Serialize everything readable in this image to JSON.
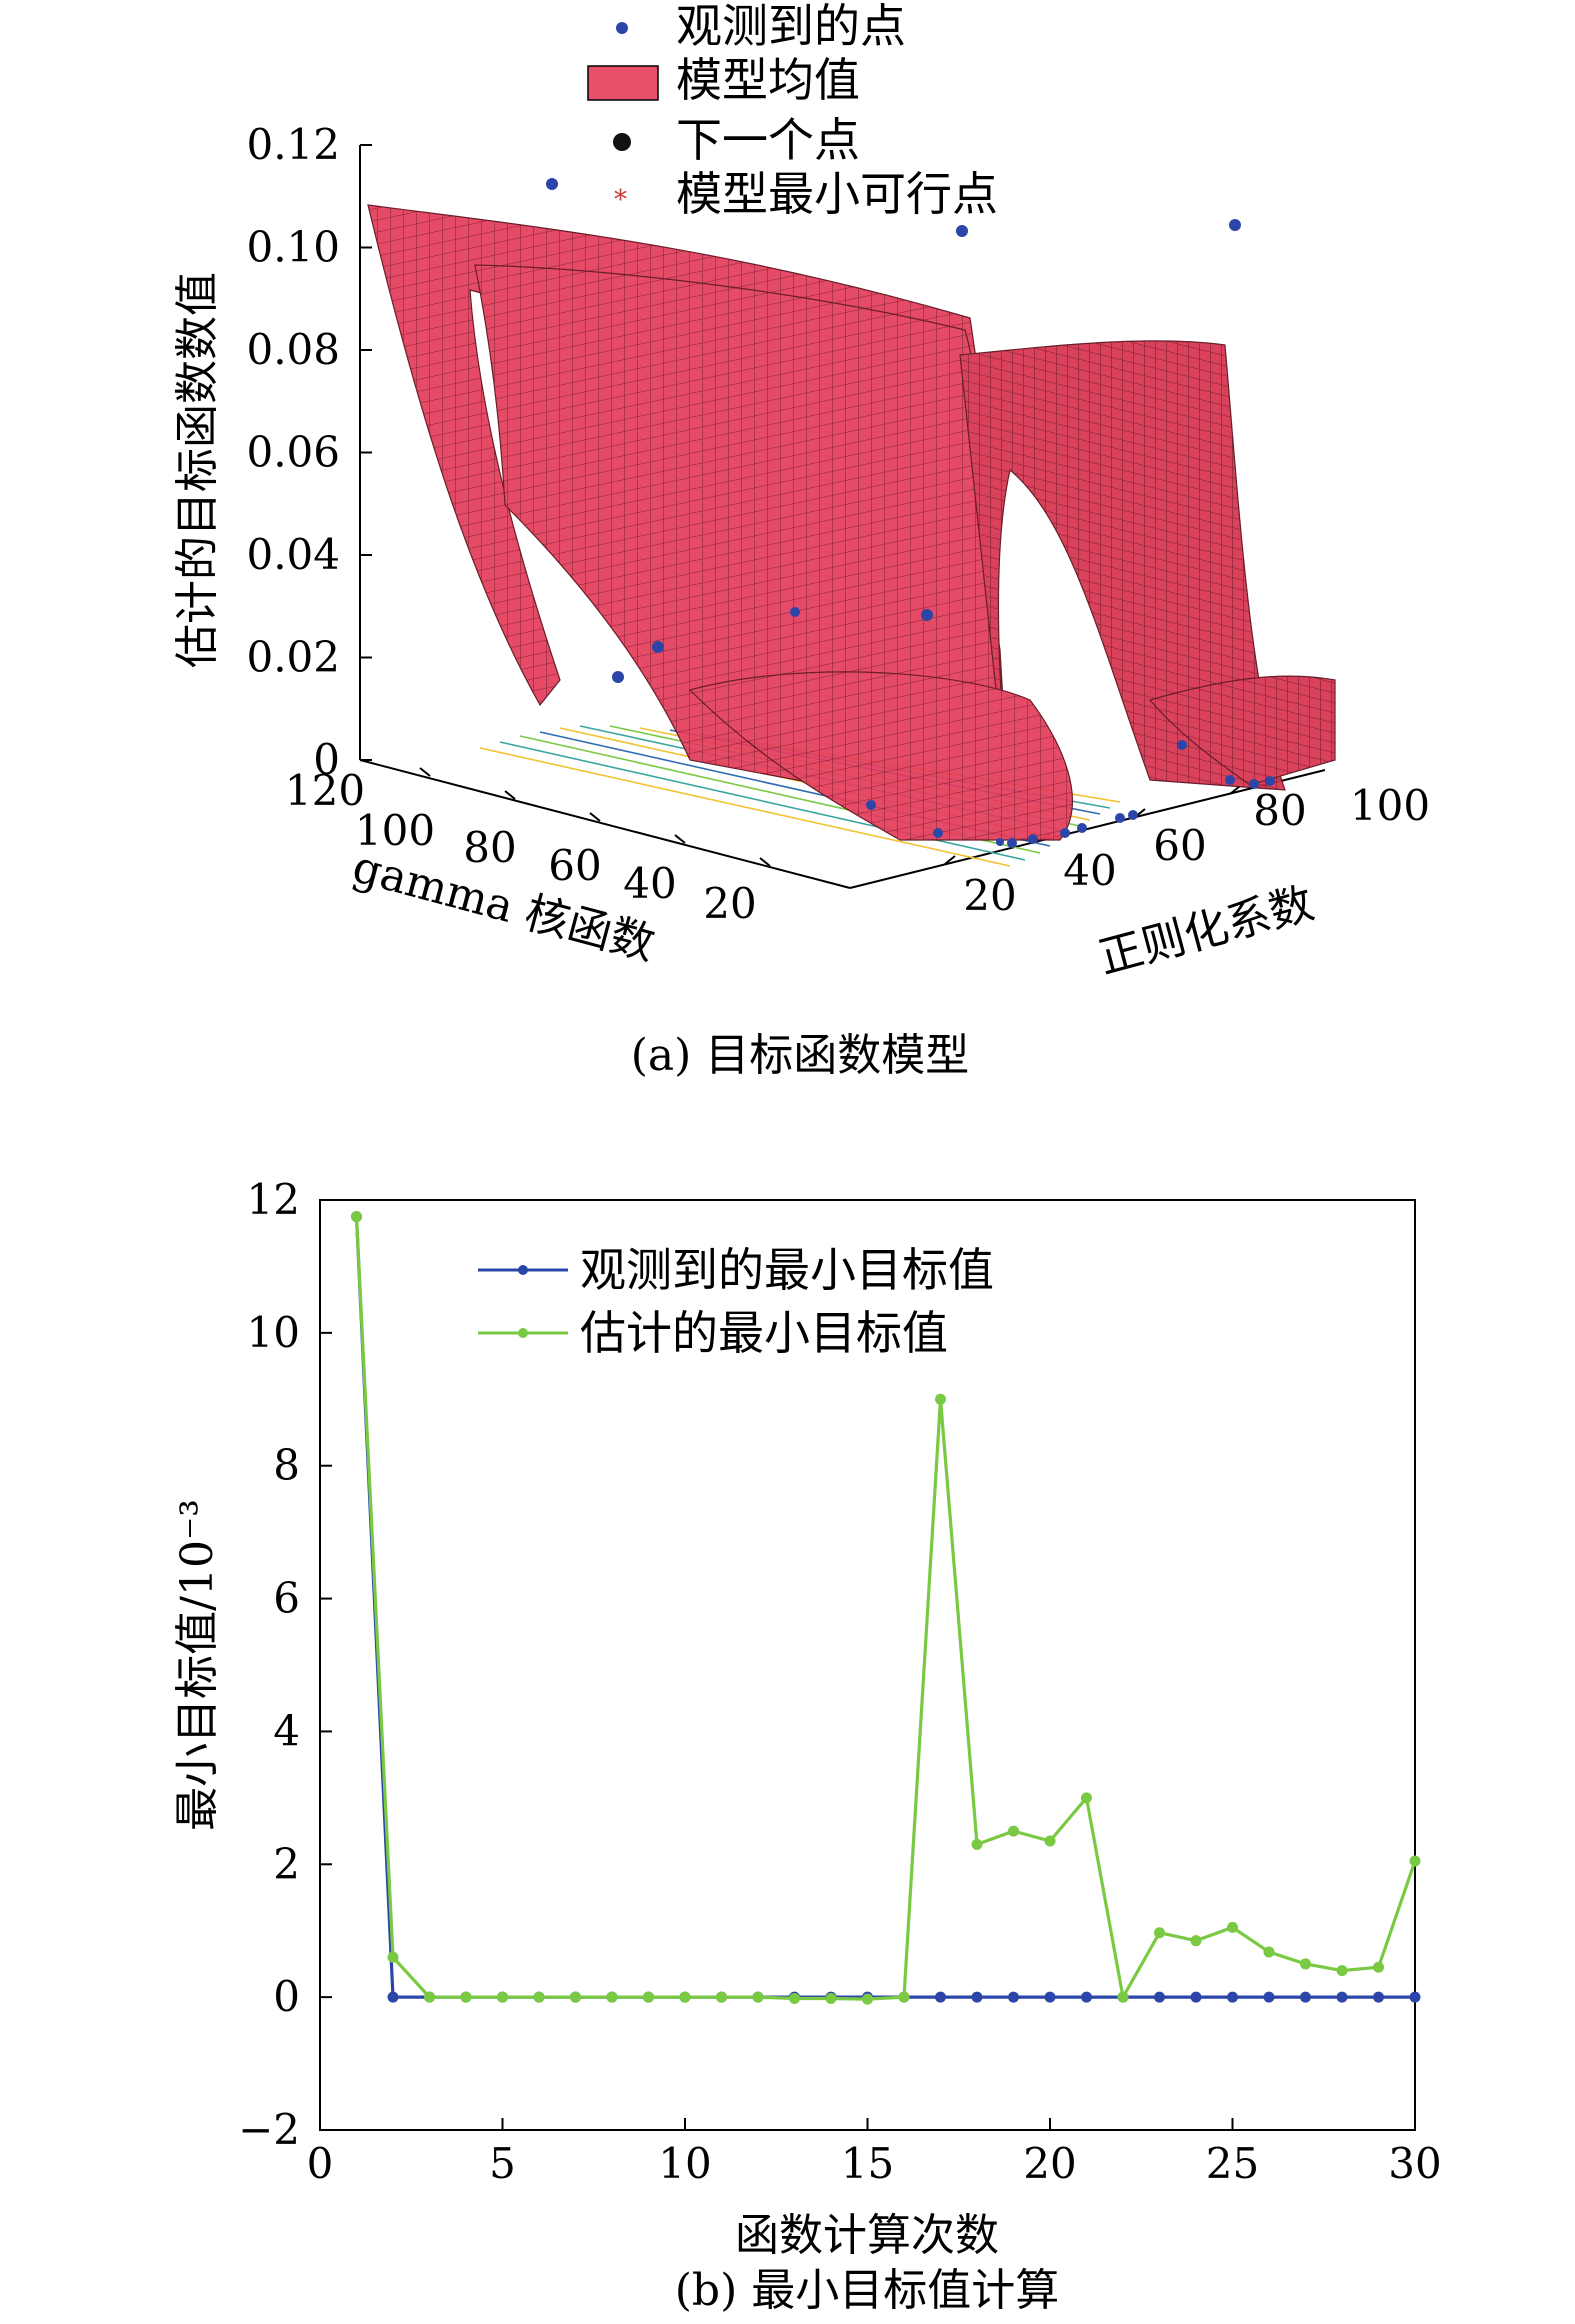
{
  "chart_data": [
    {
      "type": "surface",
      "caption": "(a) 目标函数模型",
      "zlabel": "估计的目标函数数值",
      "xlabel": "gamma 核函数",
      "ylabel": "正则化系数",
      "zlim": [
        0,
        0.12
      ],
      "zticks": [
        "0",
        "0.02",
        "0.04",
        "0.06",
        "0.08",
        "0.10",
        "0.12"
      ],
      "xticks": [
        "120",
        "100",
        "80",
        "60",
        "40",
        "20"
      ],
      "yticks": [
        "20",
        "40",
        "60",
        "80",
        "100"
      ],
      "legend": [
        {
          "label": "观测到的点",
          "marker": "dot",
          "color": "#2b46a8"
        },
        {
          "label": "模型均值",
          "marker": "rect",
          "color": "#e8506a"
        },
        {
          "label": "下一个点",
          "marker": "dot",
          "color": "#111111"
        },
        {
          "label": "模型最小可行点",
          "marker": "star",
          "color": "#d23a3a"
        }
      ],
      "surface_color": "#e23a5a",
      "observed_color": "#2b46a8"
    },
    {
      "type": "line",
      "caption": "(b) 最小目标值计算",
      "xlabel": "函数计算次数",
      "ylabel": "最小目标值/10⁻³",
      "xlim": [
        0,
        30
      ],
      "ylim": [
        -2,
        12
      ],
      "xticks": [
        0,
        5,
        10,
        15,
        20,
        25,
        30
      ],
      "yticks": [
        -2,
        0,
        2,
        4,
        6,
        8,
        10,
        12
      ],
      "ytick_labels": [
        "−2",
        "0",
        "2",
        "4",
        "6",
        "8",
        "10",
        "12"
      ],
      "legend_position": "top-right",
      "x": [
        1,
        2,
        3,
        4,
        5,
        6,
        7,
        8,
        9,
        10,
        11,
        12,
        13,
        14,
        15,
        16,
        17,
        18,
        19,
        20,
        21,
        22,
        23,
        24,
        25,
        26,
        27,
        28,
        29,
        30
      ],
      "series": [
        {
          "name": "观测到的最小目标值",
          "color": "#2b46a8",
          "values": [
            11.75,
            0,
            0,
            0,
            0,
            0,
            0,
            0,
            0,
            0,
            0,
            0,
            0,
            0,
            0,
            0,
            0,
            0,
            0,
            0,
            0,
            0,
            0,
            0,
            0,
            0,
            0,
            0,
            0,
            0
          ]
        },
        {
          "name": "估计的最小目标值",
          "color": "#7ac943",
          "values": [
            11.75,
            0.6,
            0,
            0,
            0,
            0,
            0,
            0,
            0,
            0,
            0,
            0,
            -0.02,
            -0.02,
            -0.03,
            0,
            9.0,
            2.3,
            2.5,
            2.35,
            3.0,
            0,
            0.97,
            0.85,
            1.05,
            0.68,
            0.5,
            0.4,
            0.45,
            2.05
          ]
        }
      ]
    }
  ]
}
